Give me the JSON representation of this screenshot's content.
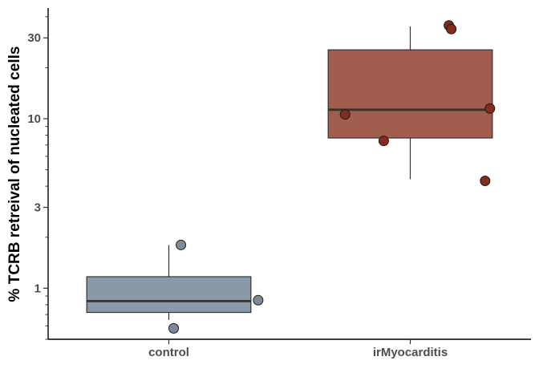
{
  "chart_data": {
    "type": "box",
    "title": "",
    "xlabel": "",
    "ylabel": "% TCRB retreival of nucleated cells",
    "yscale": "log10",
    "ylim": [
      0.5,
      45
    ],
    "yticks": [
      {
        "value": 1,
        "label": "1"
      },
      {
        "value": 3,
        "label": "3"
      },
      {
        "value": 10,
        "label": "10"
      },
      {
        "value": 30,
        "label": "30"
      }
    ],
    "grid": false,
    "legend": "none",
    "categories": [
      "control",
      "irMyocarditis"
    ],
    "boxes": [
      {
        "category": "control",
        "color": "#8a99a7",
        "point_color": "#7d8a98",
        "whisker_low": 0.65,
        "q1": 0.72,
        "median": 0.84,
        "q3": 1.17,
        "whisker_high": 1.8,
        "points": [
          {
            "jitter": 0.05,
            "y": 1.8
          },
          {
            "jitter": 0.37,
            "y": 0.85
          },
          {
            "jitter": 0.02,
            "y": 0.58
          }
        ]
      },
      {
        "category": "irMyocarditis",
        "color": "#a15d4e",
        "point_color": "#862b1e",
        "whisker_low": 4.4,
        "q1": 7.7,
        "median": 11.3,
        "q3": 25.5,
        "whisker_high": 35,
        "points": [
          {
            "jitter": 0.16,
            "y": 35.5
          },
          {
            "jitter": 0.17,
            "y": 33.8
          },
          {
            "jitter": -0.27,
            "y": 10.6
          },
          {
            "jitter": -0.11,
            "y": 7.4
          },
          {
            "jitter": 0.33,
            "y": 11.5
          },
          {
            "jitter": 0.31,
            "y": 4.3
          }
        ]
      }
    ]
  }
}
